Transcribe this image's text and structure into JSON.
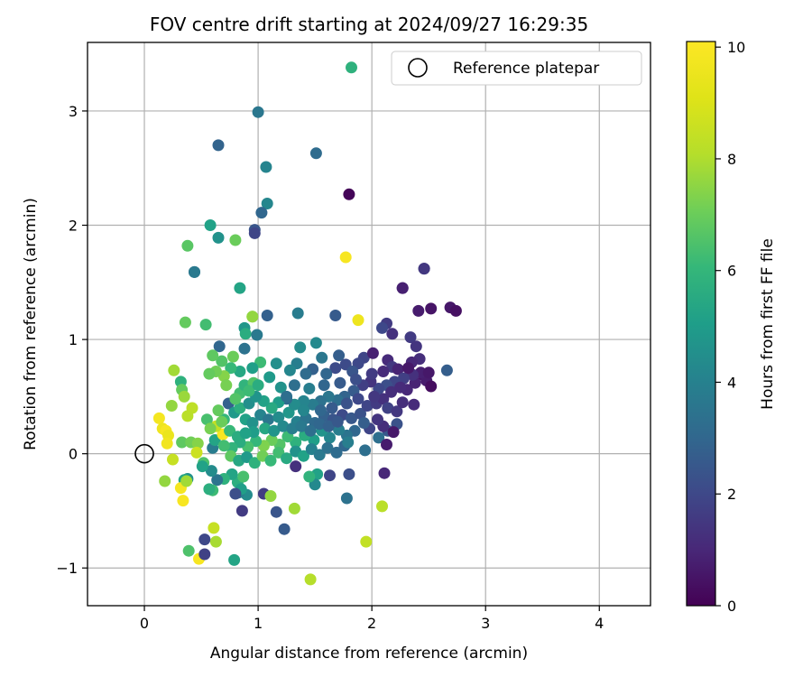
{
  "chart_data": {
    "type": "scatter",
    "title": "FOV centre drift starting at 2024/09/27 16:29:35",
    "xlabel": "Angular distance from reference (arcmin)",
    "ylabel": "Rotation from reference (arcmin)",
    "xlim": [
      -0.5,
      4.45
    ],
    "ylim": [
      -1.33,
      3.6
    ],
    "xticks": [
      0,
      1,
      2,
      3,
      4
    ],
    "xtick_labels": [
      "0",
      "1",
      "2",
      "3",
      "4"
    ],
    "yticks": [
      -1,
      0,
      1,
      2,
      3
    ],
    "ytick_labels": [
      "−1",
      "0",
      "1",
      "2",
      "3"
    ],
    "grid": true,
    "legend": {
      "placement": "top-right",
      "entries": [
        "Reference platepar"
      ]
    },
    "reference_point": {
      "x": 0,
      "y": 0,
      "name": "Reference platepar"
    },
    "colorbar": {
      "label": "Hours from first FF file",
      "colormap": "viridis",
      "range": [
        0,
        10.1
      ],
      "ticks": [
        0,
        2,
        4,
        6,
        8,
        10
      ],
      "tick_labels": [
        "0",
        "2",
        "4",
        "6",
        "8",
        "10"
      ]
    },
    "points": [
      [
        1.82,
        3.38,
        5.8
      ],
      [
        1.0,
        2.99,
        3.6
      ],
      [
        1.51,
        2.63,
        3.2
      ],
      [
        1.07,
        2.51,
        4.1
      ],
      [
        0.65,
        2.7,
        2.9
      ],
      [
        1.8,
        2.27,
        0.1
      ],
      [
        1.08,
        2.19,
        4.2
      ],
      [
        1.03,
        2.11,
        3.0
      ],
      [
        0.58,
        2.0,
        5.2
      ],
      [
        0.97,
        1.96,
        2.4
      ],
      [
        0.97,
        1.93,
        1.9
      ],
      [
        0.65,
        1.89,
        4.6
      ],
      [
        0.38,
        1.82,
        6.7
      ],
      [
        0.8,
        1.87,
        7.0
      ],
      [
        1.77,
        1.72,
        9.9
      ],
      [
        0.44,
        1.59,
        3.3
      ],
      [
        0.44,
        1.59,
        3.7
      ],
      [
        2.46,
        1.62,
        1.8
      ],
      [
        2.46,
        1.62,
        1.5
      ],
      [
        0.84,
        1.45,
        5.3
      ],
      [
        2.27,
        1.45,
        1.1
      ],
      [
        2.27,
        1.45,
        0.8
      ],
      [
        0.95,
        1.2,
        7.3
      ],
      [
        0.95,
        1.2,
        7.6
      ],
      [
        1.08,
        1.21,
        2.8
      ],
      [
        1.35,
        1.23,
        3.8
      ],
      [
        1.68,
        1.21,
        2.6
      ],
      [
        1.88,
        1.17,
        9.6
      ],
      [
        2.52,
        1.27,
        0.5
      ],
      [
        2.69,
        1.28,
        0.6
      ],
      [
        2.74,
        1.25,
        0.4
      ],
      [
        2.41,
        1.25,
        0.7
      ],
      [
        2.13,
        1.14,
        1.6
      ],
      [
        2.09,
        1.1,
        2.0
      ],
      [
        2.18,
        1.05,
        1.3
      ],
      [
        2.34,
        1.02,
        1.6
      ],
      [
        2.39,
        0.94,
        1.4
      ],
      [
        2.42,
        0.83,
        1.2
      ],
      [
        2.35,
        0.8,
        1.0
      ],
      [
        0.36,
        1.15,
        6.9
      ],
      [
        0.54,
        1.13,
        6.3
      ],
      [
        0.88,
        1.1,
        4.8
      ],
      [
        0.89,
        1.05,
        5.6
      ],
      [
        0.99,
        1.04,
        3.7
      ],
      [
        0.88,
        0.92,
        3.4
      ],
      [
        0.66,
        0.94,
        3.0
      ],
      [
        1.37,
        0.93,
        4.4
      ],
      [
        1.51,
        0.97,
        4.3
      ],
      [
        1.02,
        0.8,
        6.2
      ],
      [
        0.78,
        0.85,
        7.0
      ],
      [
        1.56,
        0.84,
        3.6
      ],
      [
        1.71,
        0.86,
        2.7
      ],
      [
        1.77,
        0.78,
        2.1
      ],
      [
        1.93,
        0.84,
        1.9
      ],
      [
        2.01,
        0.88,
        0.8
      ],
      [
        2.14,
        0.82,
        1.1
      ],
      [
        2.18,
        0.76,
        1.5
      ],
      [
        2.23,
        0.74,
        0.9
      ],
      [
        1.88,
        0.79,
        2.0
      ],
      [
        1.83,
        0.72,
        2.4
      ],
      [
        1.68,
        0.75,
        2.1
      ],
      [
        1.6,
        0.7,
        3.0
      ],
      [
        1.48,
        0.74,
        2.8
      ],
      [
        1.42,
        0.7,
        3.2
      ],
      [
        1.34,
        0.79,
        3.9
      ],
      [
        1.28,
        0.73,
        4.2
      ],
      [
        1.16,
        0.79,
        4.5
      ],
      [
        1.1,
        0.67,
        4.9
      ],
      [
        0.95,
        0.75,
        5.1
      ],
      [
        0.84,
        0.72,
        5.4
      ],
      [
        0.76,
        0.75,
        6.1
      ],
      [
        0.68,
        0.81,
        6.6
      ],
      [
        0.6,
        0.86,
        6.8
      ],
      [
        0.7,
        0.68,
        7.4
      ],
      [
        0.63,
        0.72,
        7.1
      ],
      [
        0.57,
        0.7,
        6.9
      ],
      [
        0.26,
        0.73,
        7.8
      ],
      [
        0.32,
        0.63,
        5.8
      ],
      [
        0.33,
        0.56,
        6.9
      ],
      [
        0.35,
        0.5,
        7.7
      ],
      [
        0.24,
        0.42,
        7.6
      ],
      [
        0.42,
        0.4,
        8.3
      ],
      [
        0.38,
        0.33,
        8.2
      ],
      [
        0.13,
        0.31,
        9.8
      ],
      [
        0.16,
        0.22,
        9.6
      ],
      [
        0.19,
        0.2,
        9.9
      ],
      [
        0.21,
        0.16,
        9.5
      ],
      [
        0.2,
        0.09,
        9.7
      ],
      [
        0.33,
        0.1,
        6.8
      ],
      [
        0.41,
        0.1,
        7.1
      ],
      [
        0.47,
        0.09,
        7.4
      ],
      [
        0.46,
        0.01,
        8.6
      ],
      [
        0.52,
        -0.08,
        6.5
      ],
      [
        0.6,
        0.05,
        3.8
      ],
      [
        0.62,
        0.12,
        5.3
      ],
      [
        0.69,
        0.17,
        9.9
      ],
      [
        0.63,
        0.24,
        8.4
      ],
      [
        0.7,
        0.3,
        6.0
      ],
      [
        0.74,
        0.44,
        2.8
      ],
      [
        0.79,
        0.36,
        4.9
      ],
      [
        0.84,
        0.4,
        5.7
      ],
      [
        0.92,
        0.44,
        4.5
      ],
      [
        0.84,
        0.53,
        6.3
      ],
      [
        0.88,
        0.6,
        5.9
      ],
      [
        0.96,
        0.62,
        6.6
      ],
      [
        0.72,
        0.6,
        7.2
      ],
      [
        0.89,
        0.3,
        5.2
      ],
      [
        0.95,
        0.27,
        4.6
      ],
      [
        1.02,
        0.34,
        4.1
      ],
      [
        1.09,
        0.3,
        3.6
      ],
      [
        1.18,
        0.32,
        4.4
      ],
      [
        1.27,
        0.36,
        4.8
      ],
      [
        1.34,
        0.28,
        4.0
      ],
      [
        1.42,
        0.31,
        3.5
      ],
      [
        1.5,
        0.27,
        3.1
      ],
      [
        1.58,
        0.33,
        2.8
      ],
      [
        1.66,
        0.3,
        2.4
      ],
      [
        1.74,
        0.34,
        2.1
      ],
      [
        1.82,
        0.31,
        2.5
      ],
      [
        1.9,
        0.35,
        2.3
      ],
      [
        1.96,
        0.42,
        1.9
      ],
      [
        2.04,
        0.44,
        1.6
      ],
      [
        2.1,
        0.48,
        1.3
      ],
      [
        2.14,
        0.4,
        1.8
      ],
      [
        2.22,
        0.37,
        1.5
      ],
      [
        2.27,
        0.45,
        1.2
      ],
      [
        2.31,
        0.56,
        1.0
      ],
      [
        2.38,
        0.62,
        0.9
      ],
      [
        2.45,
        0.69,
        0.5
      ],
      [
        2.48,
        0.64,
        0.7
      ],
      [
        2.52,
        0.59,
        0.3
      ],
      [
        2.43,
        0.71,
        0.8
      ],
      [
        2.5,
        0.71,
        0.6
      ],
      [
        2.36,
        0.69,
        1.3
      ],
      [
        2.28,
        0.66,
        1.7
      ],
      [
        2.2,
        0.63,
        1.9
      ],
      [
        2.13,
        0.6,
        2.2
      ],
      [
        2.06,
        0.57,
        2.0
      ],
      [
        1.99,
        0.63,
        1.4
      ],
      [
        1.92,
        0.6,
        1.7
      ],
      [
        1.84,
        0.55,
        2.6
      ],
      [
        1.76,
        0.5,
        2.9
      ],
      [
        1.7,
        0.47,
        3.3
      ],
      [
        1.62,
        0.5,
        3.6
      ],
      [
        1.55,
        0.46,
        3.4
      ],
      [
        1.48,
        0.43,
        3.8
      ],
      [
        1.4,
        0.46,
        4.1
      ],
      [
        1.32,
        0.43,
        4.4
      ],
      [
        1.25,
        0.48,
        3.1
      ],
      [
        1.18,
        0.45,
        5.0
      ],
      [
        1.12,
        0.4,
        5.5
      ],
      [
        1.05,
        0.46,
        5.2
      ],
      [
        0.98,
        0.5,
        4.7
      ],
      [
        1.2,
        0.58,
        4.6
      ],
      [
        1.32,
        0.6,
        3.3
      ],
      [
        1.45,
        0.57,
        3.9
      ],
      [
        1.58,
        0.6,
        3.0
      ],
      [
        1.72,
        0.62,
        2.6
      ],
      [
        1.86,
        0.65,
        2.2
      ],
      [
        2.0,
        0.7,
        1.6
      ],
      [
        2.1,
        0.72,
        1.1
      ],
      [
        2.66,
        0.73,
        2.7
      ],
      [
        2.37,
        0.43,
        1.1
      ],
      [
        2.22,
        0.26,
        2.3
      ],
      [
        2.14,
        0.2,
        2.5
      ],
      [
        2.06,
        0.14,
        3.3
      ],
      [
        2.13,
        0.08,
        0.7
      ],
      [
        2.11,
        -0.17,
        1.0
      ],
      [
        2.19,
        0.19,
        0.6
      ],
      [
        2.1,
        0.24,
        1.2
      ],
      [
        2.05,
        0.3,
        1.4
      ],
      [
        1.98,
        0.22,
        1.9
      ],
      [
        1.93,
        0.27,
        2.7
      ],
      [
        1.85,
        0.2,
        3.0
      ],
      [
        1.78,
        0.16,
        3.5
      ],
      [
        1.71,
        0.21,
        3.9
      ],
      [
        1.63,
        0.14,
        4.2
      ],
      [
        1.56,
        0.2,
        4.7
      ],
      [
        1.49,
        0.12,
        5.1
      ],
      [
        1.41,
        0.16,
        5.6
      ],
      [
        1.33,
        0.1,
        5.8
      ],
      [
        1.26,
        0.15,
        6.2
      ],
      [
        1.19,
        0.08,
        6.6
      ],
      [
        1.12,
        0.12,
        7.0
      ],
      [
        1.05,
        0.07,
        7.3
      ],
      [
        0.98,
        0.11,
        6.0
      ],
      [
        0.91,
        0.06,
        6.4
      ],
      [
        0.84,
        0.1,
        5.6
      ],
      [
        0.77,
        0.05,
        5.9
      ],
      [
        0.7,
        0.07,
        6.3
      ],
      [
        0.76,
        -0.02,
        6.8
      ],
      [
        0.83,
        -0.06,
        5.4
      ],
      [
        0.9,
        -0.03,
        4.9
      ],
      [
        0.97,
        -0.08,
        5.8
      ],
      [
        1.04,
        -0.02,
        7.1
      ],
      [
        1.11,
        -0.06,
        6.1
      ],
      [
        1.18,
        0.01,
        6.3
      ],
      [
        1.25,
        -0.04,
        5.5
      ],
      [
        1.33,
        0.02,
        4.6
      ],
      [
        1.4,
        -0.02,
        5.2
      ],
      [
        1.47,
        0.04,
        4.0
      ],
      [
        1.54,
        -0.01,
        3.7
      ],
      [
        1.61,
        0.05,
        3.4
      ],
      [
        1.69,
        0.01,
        3.2
      ],
      [
        1.76,
        0.07,
        3.0
      ],
      [
        1.79,
        0.1,
        3.9
      ],
      [
        1.94,
        0.03,
        3.3
      ],
      [
        1.8,
        -0.18,
        2.2
      ],
      [
        1.63,
        -0.19,
        1.9
      ],
      [
        1.52,
        -0.18,
        5.2
      ],
      [
        1.5,
        -0.27,
        4.3
      ],
      [
        1.45,
        -0.2,
        5.9
      ],
      [
        1.33,
        -0.11,
        1.3
      ],
      [
        1.78,
        -0.39,
        3.4
      ],
      [
        2.09,
        -0.46,
        8.2
      ],
      [
        1.95,
        -0.77,
        8.4
      ],
      [
        1.46,
        -1.1,
        8.1
      ],
      [
        1.32,
        -0.48,
        7.8
      ],
      [
        1.23,
        -0.66,
        2.6
      ],
      [
        1.16,
        -0.51,
        2.4
      ],
      [
        1.05,
        -0.35,
        1.6
      ],
      [
        1.11,
        -0.37,
        7.6
      ],
      [
        0.9,
        -0.36,
        4.4
      ],
      [
        0.83,
        -0.34,
        3.9
      ],
      [
        0.82,
        -0.25,
        5.7
      ],
      [
        0.87,
        -0.2,
        6.4
      ],
      [
        0.77,
        -0.18,
        5.3
      ],
      [
        0.7,
        -0.22,
        5.8
      ],
      [
        0.64,
        -0.23,
        3.5
      ],
      [
        0.6,
        -0.32,
        6.2
      ],
      [
        0.57,
        -0.31,
        5.7
      ],
      [
        0.59,
        -0.15,
        4.4
      ],
      [
        0.51,
        -0.11,
        5.2
      ],
      [
        0.38,
        -0.22,
        4.6
      ],
      [
        0.35,
        -0.23,
        5.4
      ],
      [
        0.32,
        -0.3,
        9.8
      ],
      [
        0.34,
        -0.41,
        9.9
      ],
      [
        0.37,
        -0.24,
        7.8
      ],
      [
        0.18,
        -0.24,
        7.6
      ],
      [
        0.25,
        -0.05,
        8.5
      ],
      [
        0.39,
        -0.85,
        6.5
      ],
      [
        0.48,
        -0.92,
        9.9
      ],
      [
        0.53,
        -0.75,
        2.0
      ],
      [
        0.53,
        -0.88,
        1.8
      ],
      [
        0.61,
        -0.65,
        8.5
      ],
      [
        0.63,
        -0.77,
        7.9
      ],
      [
        0.79,
        -0.93,
        5.3
      ],
      [
        0.86,
        -0.5,
        1.6
      ],
      [
        0.85,
        -0.31,
        5.1
      ],
      [
        0.8,
        -0.35,
        2.2
      ],
      [
        1.25,
        0.5,
        3.3
      ],
      [
        1.4,
        0.38,
        4.2
      ],
      [
        1.55,
        0.38,
        3.0
      ],
      [
        1.65,
        0.4,
        2.6
      ],
      [
        1.78,
        0.44,
        2.3
      ],
      [
        1.88,
        0.48,
        2.0
      ],
      [
        2.02,
        0.5,
        1.5
      ],
      [
        2.17,
        0.54,
        1.2
      ],
      [
        2.25,
        0.58,
        1.1
      ],
      [
        2.32,
        0.75,
        0.6
      ],
      [
        0.96,
        0.19,
        5.0
      ],
      [
        1.06,
        0.22,
        5.4
      ],
      [
        1.14,
        0.2,
        4.7
      ],
      [
        1.22,
        0.24,
        4.3
      ],
      [
        1.3,
        0.22,
        3.9
      ],
      [
        1.38,
        0.24,
        3.7
      ],
      [
        1.46,
        0.2,
        3.3
      ],
      [
        1.54,
        0.26,
        3.0
      ],
      [
        1.62,
        0.24,
        2.8
      ],
      [
        1.7,
        0.28,
        2.5
      ],
      [
        0.75,
        0.2,
        6.1
      ],
      [
        0.82,
        0.15,
        5.6
      ],
      [
        0.89,
        0.18,
        5.2
      ],
      [
        0.68,
        0.28,
        7.0
      ],
      [
        0.55,
        0.3,
        6.4
      ],
      [
        0.58,
        0.22,
        7.2
      ],
      [
        0.65,
        0.38,
        6.9
      ],
      [
        0.8,
        0.48,
        6.6
      ],
      [
        0.92,
        0.55,
        6.2
      ],
      [
        1.0,
        0.6,
        5.6
      ]
    ]
  }
}
